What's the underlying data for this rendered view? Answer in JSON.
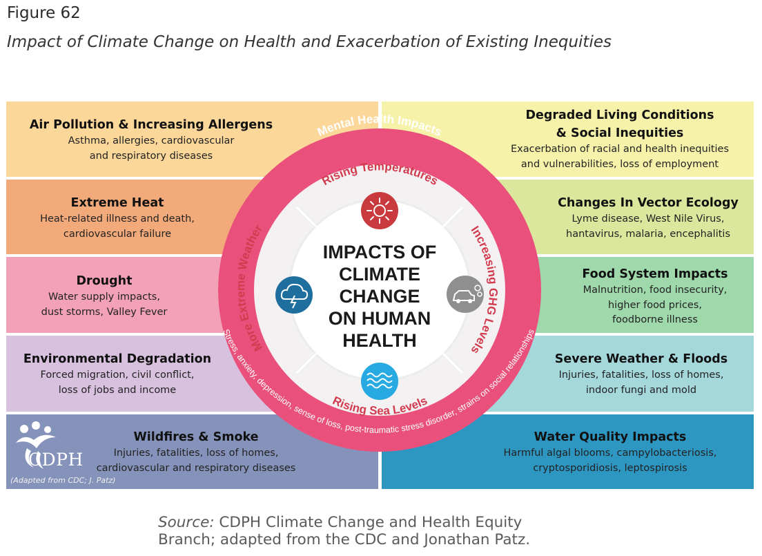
{
  "figure_label": "Figure 62",
  "figure_title": "Impact of Climate Change on Health and Exacerbation of Existing Inequities",
  "panels": {
    "air_pollution": {
      "heading": "Air Pollution & Increasing Allergens",
      "line1": "Asthma, allergies, cardiovascular",
      "line2": "and respiratory diseases"
    },
    "extreme_heat": {
      "heading": "Extreme Heat",
      "line1": "Heat-related illness and death,",
      "line2": "cardiovascular failure"
    },
    "drought": {
      "heading": "Drought",
      "line1": "Water supply impacts,",
      "line2": "dust storms, Valley Fever"
    },
    "environmental_degradation": {
      "heading": "Environmental Degradation",
      "line1": "Forced migration, civil conflict,",
      "line2": "loss of jobs and income"
    },
    "wildfires": {
      "heading": "Wildfires & Smoke",
      "line1": "Injuries, fatalities, loss of homes,",
      "line2": "cardiovascular and respiratory diseases"
    },
    "living_conditions": {
      "heading1": "Degraded Living Conditions",
      "heading2": "& Social Inequities",
      "line1": "Exacerbation of racial and health inequities",
      "line2": "and vulnerabilities, loss of employment"
    },
    "vector_ecology": {
      "heading": "Changes In Vector Ecology",
      "line1": "Lyme disease, West Nile Virus,",
      "line2": "hantavirus, malaria, encephalitis"
    },
    "food_system": {
      "heading": "Food System Impacts",
      "line1": "Malnutrition, food insecurity,",
      "line2": "higher food prices,",
      "line3": "foodborne illness"
    },
    "severe_weather": {
      "heading": "Severe Weather & Floods",
      "line1": "Injuries, fatalities, loss of homes,",
      "line2": "indoor fungi and mold"
    },
    "water_quality": {
      "heading": "Water Quality Impacts",
      "line1": "Harmful algal blooms, campylobacteriosis,",
      "line2": "cryptosporidiosis, leptospirosis"
    }
  },
  "circle": {
    "outer_label": "Mental Health Impacts",
    "outer_arc_text": "Stress, anxiety, depression, sense of loss, post-traumatic stress disorder, strains on social relationships",
    "ring_top": "Rising Temperatures",
    "ring_right": "Increasing GHG Levels",
    "ring_bottom": "Rising Sea Levels",
    "ring_left": "More Extreme Weather",
    "center_lines": [
      "IMPACTS OF",
      "CLIMATE",
      "CHANGE",
      "ON HUMAN",
      "HEALTH"
    ]
  },
  "logo": {
    "text": "CDPH",
    "attribution": "(Adapted from CDC; J. Patz)"
  },
  "source": {
    "label": "Source:",
    "line1_rest": " CDPH Climate Change and Health Equity",
    "line2": "Branch; adapted from the CDC and Jonathan Patz."
  },
  "colors": {
    "left1": "#fbd79a",
    "left2": "#f3aa7a",
    "left3": "#f3a1b9",
    "left4": "#d7c1de",
    "left5": "#8592ba",
    "right1": "#f6f2a9",
    "right2": "#dbe79c",
    "right3": "#9ed8ab",
    "right4": "#a4d8db",
    "right5": "#2d97c2",
    "pink_ring": "#e9517c",
    "sun_red": "#c93a3e",
    "storm_blue": "#1f6f9e",
    "car_gray": "#8f8f8f",
    "wave_cyan": "#27a9e1"
  }
}
